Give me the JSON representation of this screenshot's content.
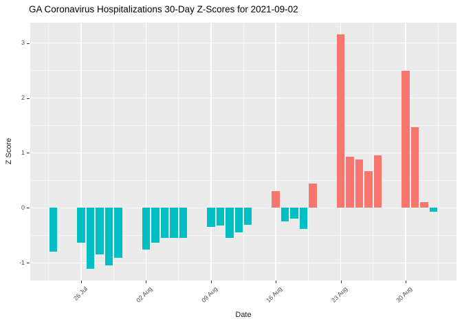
{
  "page": {
    "background": "#FFFFFF"
  },
  "chart_data": {
    "type": "bar",
    "title": "GA Coronavirus Hospitalizations 30-Day Z-Scores for 2021-09-02",
    "xlabel": "Date",
    "ylabel": "Z Score",
    "panel_background": "#EBEBEB",
    "gridline_color": "#FFFFFF",
    "legend": "none",
    "grid": "on",
    "bar_colors": {
      "positive": "#F8766D",
      "negative": "#00BFC4"
    },
    "x_domain_days": [
      -2.5,
      43.5
    ],
    "ylim": [
      -1.32,
      3.37
    ],
    "y_major_ticks": [
      -1,
      0,
      1,
      2,
      3
    ],
    "y_minor_ticks": [
      -0.5,
      0.5,
      1.5,
      2.5
    ],
    "x_major_ticks": [
      {
        "day": 3,
        "label": "26 Jul"
      },
      {
        "day": 10,
        "label": "02 Aug"
      },
      {
        "day": 17,
        "label": "09 Aug"
      },
      {
        "day": 24,
        "label": "16 Aug"
      },
      {
        "day": 31,
        "label": "23 Aug"
      },
      {
        "day": 38,
        "label": "30 Aug"
      }
    ],
    "x_minor_tick_days": [
      -0.5,
      6.5,
      13.5,
      20.5,
      27.5,
      34.5,
      41.5
    ],
    "bar_width_days": 0.85,
    "points": [
      {
        "date": "23 Jul",
        "day": 0,
        "value": -0.79
      },
      {
        "date": "26 Jul",
        "day": 3,
        "value": -0.63
      },
      {
        "date": "27 Jul",
        "day": 4,
        "value": -1.11
      },
      {
        "date": "28 Jul",
        "day": 5,
        "value": -0.84
      },
      {
        "date": "29 Jul",
        "day": 6,
        "value": -1.05
      },
      {
        "date": "30 Jul",
        "day": 7,
        "value": -0.91
      },
      {
        "date": "02 Aug",
        "day": 10,
        "value": -0.76
      },
      {
        "date": "03 Aug",
        "day": 11,
        "value": -0.63
      },
      {
        "date": "04 Aug",
        "day": 12,
        "value": -0.55
      },
      {
        "date": "05 Aug",
        "day": 13,
        "value": -0.55
      },
      {
        "date": "06 Aug",
        "day": 14,
        "value": -0.54
      },
      {
        "date": "09 Aug",
        "day": 17,
        "value": -0.34
      },
      {
        "date": "10 Aug",
        "day": 18,
        "value": -0.32
      },
      {
        "date": "11 Aug",
        "day": 19,
        "value": -0.55
      },
      {
        "date": "12 Aug",
        "day": 20,
        "value": -0.44
      },
      {
        "date": "13 Aug",
        "day": 21,
        "value": -0.31
      },
      {
        "date": "16 Aug",
        "day": 24,
        "value": 0.31
      },
      {
        "date": "17 Aug",
        "day": 25,
        "value": -0.24
      },
      {
        "date": "18 Aug",
        "day": 26,
        "value": -0.19
      },
      {
        "date": "19 Aug",
        "day": 27,
        "value": -0.38
      },
      {
        "date": "20 Aug",
        "day": 28,
        "value": 0.44
      },
      {
        "date": "23 Aug",
        "day": 31,
        "value": 3.16
      },
      {
        "date": "24 Aug",
        "day": 32,
        "value": 0.93
      },
      {
        "date": "25 Aug",
        "day": 33,
        "value": 0.88
      },
      {
        "date": "26 Aug",
        "day": 34,
        "value": 0.67
      },
      {
        "date": "27 Aug",
        "day": 35,
        "value": 0.96
      },
      {
        "date": "30 Aug",
        "day": 38,
        "value": 2.49
      },
      {
        "date": "31 Aug",
        "day": 39,
        "value": 1.47
      },
      {
        "date": "01 Sep",
        "day": 40,
        "value": 0.11
      },
      {
        "date": "02 Sep",
        "day": 41,
        "value": -0.07
      }
    ]
  }
}
